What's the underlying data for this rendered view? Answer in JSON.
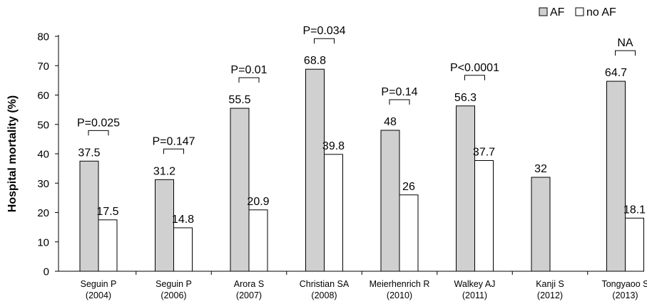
{
  "chart_data": {
    "type": "bar",
    "ylabel": "Hospital mortality (%)",
    "xlabel": "",
    "ylim": [
      0,
      80
    ],
    "yticks": [
      0,
      10,
      20,
      30,
      40,
      50,
      60,
      70,
      80
    ],
    "grid": false,
    "legend_position": "top-right",
    "categories": [
      [
        "Seguin P",
        "(2004)"
      ],
      [
        "Seguin P",
        "(2006)"
      ],
      [
        "Arora S",
        "(2007)"
      ],
      [
        "Christian SA",
        "(2008)"
      ],
      [
        "Meierhenrich R",
        "(2010)"
      ],
      [
        "Walkey AJ",
        "(2011)"
      ],
      [
        "Kanji S",
        "(2012)"
      ],
      [
        "Tongyaoo S",
        "(2013)"
      ]
    ],
    "series": [
      {
        "name": "AF",
        "color": "#d0d0d0",
        "values": [
          37.5,
          31.2,
          55.5,
          68.8,
          48,
          56.3,
          32,
          64.7
        ],
        "labels": [
          "37.5",
          "31.2",
          "55.5",
          "68.8",
          "48",
          "56.3",
          "32",
          "64.7"
        ]
      },
      {
        "name": "no AF",
        "color": "#ffffff",
        "values": [
          17.5,
          14.8,
          20.9,
          39.8,
          26,
          37.7,
          null,
          18.1
        ],
        "labels": [
          "17.5",
          "14.8",
          "20.9",
          "39.8",
          "26",
          "37.7",
          null,
          "18.1"
        ]
      }
    ],
    "annotations": [
      "P=0.025",
      "P=0.147",
      "P=0.01",
      "P=0.034",
      "P=0.14",
      "P<0.0001",
      null,
      "NA"
    ]
  }
}
